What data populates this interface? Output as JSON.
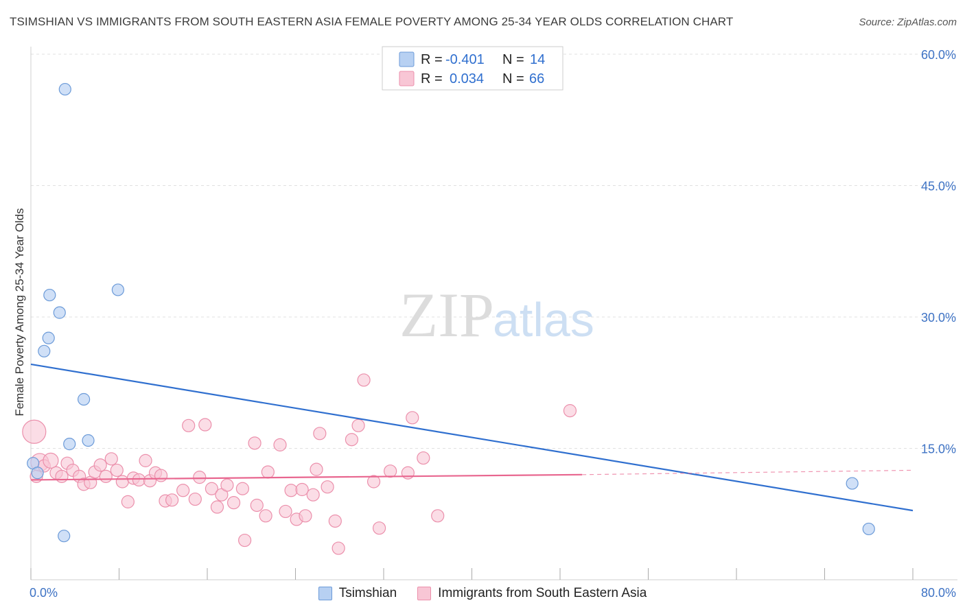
{
  "title": "TSIMSHIAN VS IMMIGRANTS FROM SOUTH EASTERN ASIA FEMALE POVERTY AMONG 25-34 YEAR OLDS CORRELATION CHART",
  "source": "Source: ZipAtlas.com",
  "watermark": {
    "zip": "ZIP",
    "atlas": "atlas"
  },
  "colors": {
    "blue_fill": "#b7d0f2",
    "blue_stroke": "#6b9ad8",
    "blue_line": "#2f6fcf",
    "pink_fill": "#f8c6d5",
    "pink_stroke": "#eb8fab",
    "pink_line": "#e8668f",
    "grid": "#e0e0e0",
    "tick_text": "#3d72c4"
  },
  "legend": {
    "rows": [
      {
        "r_label": "R =",
        "r_value": "-0.401",
        "n_label": "N =",
        "n_value": "14"
      },
      {
        "r_label": "R =",
        "r_value": "0.034",
        "n_label": "N =",
        "n_value": "66"
      }
    ]
  },
  "bottom_legend": [
    "Tsimshian",
    "Immigrants from South Eastern Asia"
  ],
  "chart_data": {
    "type": "scatter",
    "title": "TSIMSHIAN VS IMMIGRANTS FROM SOUTH EASTERN ASIA FEMALE POVERTY AMONG 25-34 YEAR OLDS CORRELATION CHART",
    "xlabel": "",
    "ylabel": "Female Poverty Among 25-34 Year Olds",
    "xlim": [
      0,
      80
    ],
    "ylim": [
      0,
      60
    ],
    "x_tick_labels": [
      "0.0%",
      "80.0%"
    ],
    "y_ticks": [
      15,
      30,
      45,
      60
    ],
    "y_tick_labels": [
      "15.0%",
      "30.0%",
      "45.0%",
      "60.0%"
    ],
    "grid": true,
    "series": [
      {
        "name": "Tsimshian",
        "r": -0.401,
        "n": 14,
        "points": [
          {
            "x": 0.2,
            "y": 13.3
          },
          {
            "x": 0.6,
            "y": 12.2
          },
          {
            "x": 1.2,
            "y": 26.1
          },
          {
            "x": 1.6,
            "y": 27.6
          },
          {
            "x": 1.7,
            "y": 32.5
          },
          {
            "x": 2.6,
            "y": 30.5
          },
          {
            "x": 3.1,
            "y": 56.0
          },
          {
            "x": 3.0,
            "y": 5.0
          },
          {
            "x": 3.5,
            "y": 15.5
          },
          {
            "x": 4.8,
            "y": 20.6
          },
          {
            "x": 5.2,
            "y": 15.9
          },
          {
            "x": 7.9,
            "y": 33.1
          },
          {
            "x": 74.5,
            "y": 11.0
          },
          {
            "x": 76.0,
            "y": 5.8
          }
        ],
        "trend": {
          "x": [
            0,
            80
          ],
          "y": [
            24.6,
            7.9
          ]
        }
      },
      {
        "name": "Immigrants from South Eastern Asia",
        "r": 0.034,
        "n": 66,
        "points": [
          {
            "x": 0.3,
            "y": 16.9
          },
          {
            "x": 0.8,
            "y": 13.4
          },
          {
            "x": 1.2,
            "y": 13.0
          },
          {
            "x": 1.8,
            "y": 13.6
          },
          {
            "x": 2.3,
            "y": 12.2
          },
          {
            "x": 2.8,
            "y": 11.8
          },
          {
            "x": 3.3,
            "y": 13.3
          },
          {
            "x": 3.8,
            "y": 12.5
          },
          {
            "x": 4.4,
            "y": 11.8
          },
          {
            "x": 4.8,
            "y": 10.9
          },
          {
            "x": 5.4,
            "y": 11.1
          },
          {
            "x": 5.8,
            "y": 12.3
          },
          {
            "x": 6.3,
            "y": 13.1
          },
          {
            "x": 6.8,
            "y": 11.8
          },
          {
            "x": 7.3,
            "y": 13.8
          },
          {
            "x": 7.8,
            "y": 12.5
          },
          {
            "x": 8.3,
            "y": 11.2
          },
          {
            "x": 8.8,
            "y": 8.9
          },
          {
            "x": 9.3,
            "y": 11.6
          },
          {
            "x": 9.8,
            "y": 11.4
          },
          {
            "x": 10.4,
            "y": 13.6
          },
          {
            "x": 10.8,
            "y": 11.3
          },
          {
            "x": 11.3,
            "y": 12.2
          },
          {
            "x": 11.8,
            "y": 11.9
          },
          {
            "x": 12.2,
            "y": 9.0
          },
          {
            "x": 12.8,
            "y": 9.1
          },
          {
            "x": 13.8,
            "y": 10.2
          },
          {
            "x": 14.3,
            "y": 17.6
          },
          {
            "x": 14.9,
            "y": 9.2
          },
          {
            "x": 15.3,
            "y": 11.7
          },
          {
            "x": 15.8,
            "y": 17.7
          },
          {
            "x": 16.4,
            "y": 10.4
          },
          {
            "x": 16.9,
            "y": 8.3
          },
          {
            "x": 17.3,
            "y": 9.7
          },
          {
            "x": 17.8,
            "y": 10.8
          },
          {
            "x": 18.4,
            "y": 8.8
          },
          {
            "x": 19.2,
            "y": 10.4
          },
          {
            "x": 19.4,
            "y": 4.5
          },
          {
            "x": 20.3,
            "y": 15.6
          },
          {
            "x": 20.5,
            "y": 8.5
          },
          {
            "x": 21.3,
            "y": 7.3
          },
          {
            "x": 21.5,
            "y": 12.3
          },
          {
            "x": 22.6,
            "y": 15.4
          },
          {
            "x": 23.1,
            "y": 7.8
          },
          {
            "x": 23.6,
            "y": 10.2
          },
          {
            "x": 24.1,
            "y": 6.9
          },
          {
            "x": 24.6,
            "y": 10.3
          },
          {
            "x": 24.9,
            "y": 7.3
          },
          {
            "x": 25.6,
            "y": 9.7
          },
          {
            "x": 25.9,
            "y": 12.6
          },
          {
            "x": 26.2,
            "y": 16.7
          },
          {
            "x": 26.9,
            "y": 10.6
          },
          {
            "x": 27.6,
            "y": 6.7
          },
          {
            "x": 27.9,
            "y": 3.6
          },
          {
            "x": 29.1,
            "y": 16.0
          },
          {
            "x": 29.7,
            "y": 17.6
          },
          {
            "x": 30.2,
            "y": 22.8
          },
          {
            "x": 31.1,
            "y": 11.2
          },
          {
            "x": 31.6,
            "y": 5.9
          },
          {
            "x": 32.6,
            "y": 12.4
          },
          {
            "x": 34.2,
            "y": 12.2
          },
          {
            "x": 34.6,
            "y": 18.5
          },
          {
            "x": 35.6,
            "y": 13.9
          },
          {
            "x": 36.9,
            "y": 7.3
          },
          {
            "x": 48.9,
            "y": 19.3
          },
          {
            "x": 0.5,
            "y": 11.8
          }
        ],
        "trend": {
          "x": [
            0,
            50
          ],
          "y": [
            11.4,
            12.0
          ],
          "dashed_to": 80,
          "dashed_y": 12.5
        }
      }
    ]
  }
}
